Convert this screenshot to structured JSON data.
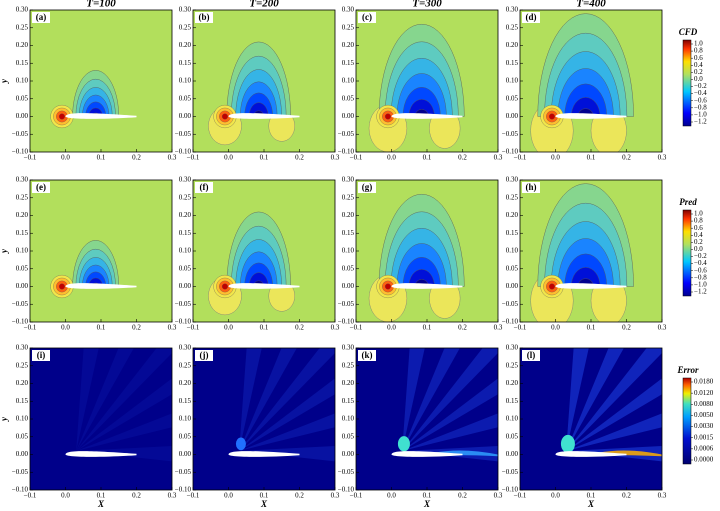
{
  "chart_data": {
    "type": "contour",
    "column_titles": [
      "T=100",
      "T=200",
      "T=300",
      "T=400"
    ],
    "panels": [
      "(a)",
      "(b)",
      "(c)",
      "(d)",
      "(e)",
      "(f)",
      "(g)",
      "(h)",
      "(i)",
      "(j)",
      "(k)",
      "(l)"
    ],
    "xlabel": "X",
    "ylabel": "y",
    "xlim": [
      -0.1,
      0.3
    ],
    "xticks": [
      {
        "value": -0.1,
        "label": "−0.1"
      },
      {
        "value": 0,
        "label": "0.0"
      },
      {
        "value": 0.1,
        "label": "0.1"
      },
      {
        "value": 0.2,
        "label": "0.2"
      },
      {
        "value": 0.3,
        "label": "0.3"
      }
    ],
    "ylim": [
      -0.1,
      0.3
    ],
    "yticks": [
      {
        "value": -0.1,
        "label": "−0.10"
      },
      {
        "value": -0.05,
        "label": "−0.05"
      },
      {
        "value": 0,
        "label": "0.00"
      },
      {
        "value": 0.05,
        "label": "0.05"
      },
      {
        "value": 0.1,
        "label": "0.10"
      },
      {
        "value": 0.15,
        "label": "0.15"
      },
      {
        "value": 0.2,
        "label": "0.20"
      },
      {
        "value": 0.25,
        "label": "0.25"
      },
      {
        "value": 0.3,
        "label": "0.30"
      }
    ],
    "colorbars": [
      {
        "title": "CFD",
        "ticks": [
          {
            "value": 1,
            "label": "1.0"
          },
          {
            "value": 0.8,
            "label": "0.8"
          },
          {
            "value": 0.6,
            "label": "0.6"
          },
          {
            "value": 0.4,
            "label": "0.4"
          },
          {
            "value": 0.2,
            "label": "0.2"
          },
          {
            "value": 0,
            "label": "0.0"
          },
          {
            "value": -0.2,
            "label": "−0.2"
          },
          {
            "value": -0.4,
            "label": "−0.4"
          },
          {
            "value": -0.6,
            "label": "−0.6"
          },
          {
            "value": -0.8,
            "label": "−0.8"
          },
          {
            "value": -1,
            "label": "−1.0"
          },
          {
            "value": -1.2,
            "label": "−1.2"
          }
        ]
      },
      {
        "title": "Pred",
        "ticks": [
          {
            "value": 1,
            "label": "1.0"
          },
          {
            "value": 0.8,
            "label": "0.8"
          },
          {
            "value": 0.6,
            "label": "0.6"
          },
          {
            "value": 0.4,
            "label": "0.4"
          },
          {
            "value": 0.2,
            "label": "0.2"
          },
          {
            "value": 0,
            "label": "0.0"
          },
          {
            "value": -0.2,
            "label": "−0.2"
          },
          {
            "value": -0.4,
            "label": "−0.4"
          },
          {
            "value": -0.6,
            "label": "−0.6"
          },
          {
            "value": -0.8,
            "label": "−0.8"
          },
          {
            "value": -1,
            "label": "−1.0"
          },
          {
            "value": -1.2,
            "label": "−1.2"
          }
        ]
      },
      {
        "title": "Error",
        "ticks": [
          {
            "value": 0.018,
            "label": "0.0180"
          },
          {
            "value": 0.012,
            "label": "0.0120"
          },
          {
            "value": 0.008,
            "label": "0.0080"
          },
          {
            "value": 0.005,
            "label": "0.0050"
          },
          {
            "value": 0.003,
            "label": "0.0030"
          },
          {
            "value": 0.0015,
            "label": "0.0015"
          },
          {
            "value": 0.0006,
            "label": "0.0006"
          },
          {
            "value": 0,
            "label": "0.0000"
          }
        ]
      }
    ]
  }
}
